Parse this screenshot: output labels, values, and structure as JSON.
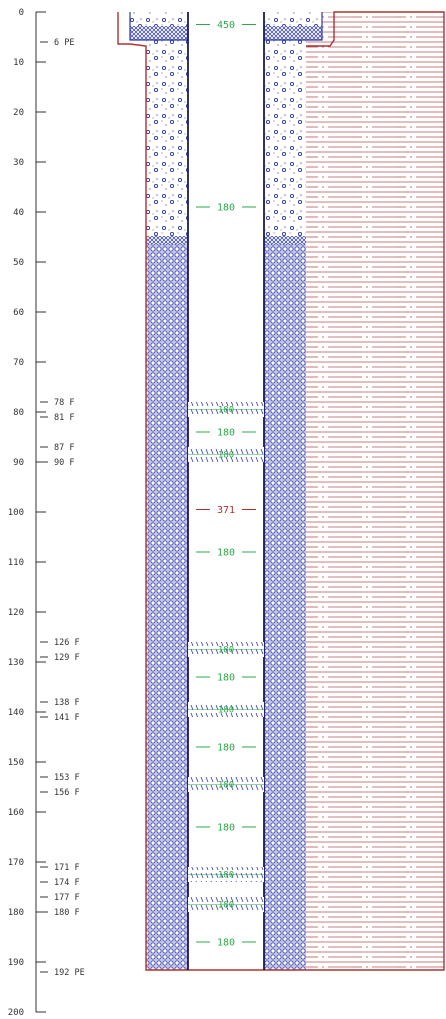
{
  "depth_axis": {
    "ticks": [
      "0",
      "10",
      "20",
      "30",
      "40",
      "50",
      "60",
      "70",
      "80",
      "90",
      "100",
      "110",
      "120",
      "130",
      "140",
      "150",
      "160",
      "170",
      "180",
      "190",
      "200"
    ]
  },
  "annotations": [
    {
      "depth": 6,
      "label": "6 PE"
    },
    {
      "depth": 78,
      "label": "78 F"
    },
    {
      "depth": 81,
      "label": "81 F"
    },
    {
      "depth": 87,
      "label": "87 F"
    },
    {
      "depth": 90,
      "label": "90 F"
    },
    {
      "depth": 126,
      "label": "126 F"
    },
    {
      "depth": 129,
      "label": "129 F"
    },
    {
      "depth": 138,
      "label": "138 F"
    },
    {
      "depth": 141,
      "label": "141 F"
    },
    {
      "depth": 153,
      "label": "153 F"
    },
    {
      "depth": 156,
      "label": "156 F"
    },
    {
      "depth": 171,
      "label": "171 F"
    },
    {
      "depth": 174,
      "label": "174 F"
    },
    {
      "depth": 177,
      "label": "177 F"
    },
    {
      "depth": 180,
      "label": "180 F"
    },
    {
      "depth": 192,
      "label": "192 PE"
    }
  ],
  "diameter_labels": [
    {
      "depth": 2.5,
      "text": "450",
      "color": "green"
    },
    {
      "depth": 39,
      "text": "180",
      "color": "green"
    },
    {
      "depth": 84,
      "text": "180",
      "color": "green"
    },
    {
      "depth": 99.5,
      "text": "371",
      "color": "red"
    },
    {
      "depth": 108,
      "text": "180",
      "color": "green"
    },
    {
      "depth": 133,
      "text": "180",
      "color": "green"
    },
    {
      "depth": 147,
      "text": "180",
      "color": "green"
    },
    {
      "depth": 163,
      "text": "180",
      "color": "green"
    },
    {
      "depth": 186,
      "text": "180",
      "color": "green"
    }
  ],
  "screens": [
    {
      "top": 78,
      "bottom": 81,
      "text": "180"
    },
    {
      "top": 87,
      "bottom": 90,
      "text": "180"
    },
    {
      "top": 126,
      "bottom": 129,
      "text": "180"
    },
    {
      "top": 138,
      "bottom": 141,
      "text": "180"
    },
    {
      "top": 153,
      "bottom": 156,
      "text": "180"
    },
    {
      "top": 171,
      "bottom": 174,
      "text": "180"
    },
    {
      "top": 177,
      "bottom": 180,
      "text": "180"
    }
  ],
  "colors": {
    "green": "#2ea84a",
    "red": "#b03030",
    "blue": "#2f3aa8",
    "hatch": "#b05050"
  }
}
